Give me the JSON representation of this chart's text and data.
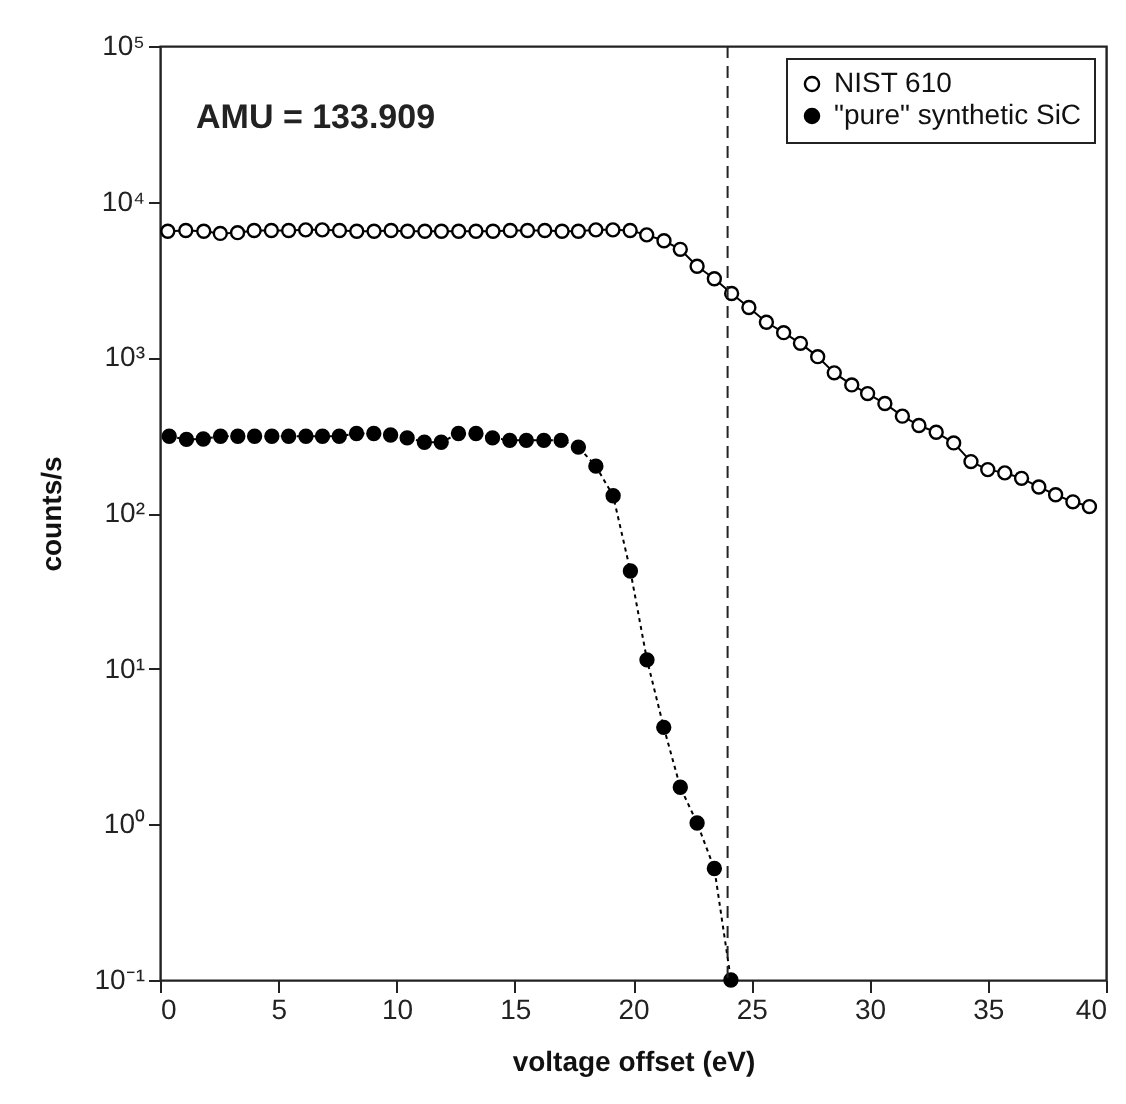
{
  "chart_data": {
    "type": "line",
    "xlabel": "voltage offset (eV)",
    "ylabel": "counts/s",
    "annotations": [
      "AMU = 133.909"
    ],
    "log": "y",
    "grid": false,
    "legend": "top right",
    "marker": "circle",
    "xlim": [
      0,
      40
    ],
    "xticks": [
      0,
      5,
      10,
      15,
      20,
      25,
      30,
      35,
      40
    ],
    "ylim": [
      0.1,
      100000
    ],
    "yticks": [
      {
        "value": 0.1,
        "label": "10⁻¹"
      },
      {
        "value": 1,
        "label": "10⁰"
      },
      {
        "value": 10,
        "label": "10¹"
      },
      {
        "value": 100,
        "label": "10²"
      },
      {
        "value": 1000,
        "label": "10³"
      },
      {
        "value": 10000,
        "label": "10⁴"
      },
      {
        "value": 100000,
        "label": "10⁵"
      }
    ],
    "ref_lines": [
      {
        "axis": "x",
        "value": 24,
        "line_style": "dashed"
      }
    ],
    "series": [
      {
        "name": "NIST 610",
        "color": "#000000",
        "line_style": "solid",
        "x": [
          0.33,
          1.09,
          1.85,
          2.55,
          3.28,
          3.98,
          4.71,
          5.44,
          6.16,
          6.86,
          7.59,
          8.32,
          9.05,
          9.77,
          10.47,
          11.2,
          11.9,
          12.63,
          13.36,
          14.08,
          14.81,
          15.54,
          16.27,
          17.0,
          17.69,
          18.43,
          19.15,
          19.88,
          20.58,
          21.31,
          22.0,
          22.71,
          23.44,
          24.17,
          24.9,
          25.64,
          26.37,
          27.08,
          27.81,
          28.51,
          29.25,
          29.92,
          30.65,
          31.39,
          32.09,
          32.82,
          33.56,
          34.29,
          35.0,
          35.72,
          36.43,
          37.16,
          37.87,
          38.6,
          39.3
        ],
        "values": [
          6460,
          6530,
          6460,
          6250,
          6320,
          6530,
          6530,
          6530,
          6590,
          6590,
          6530,
          6460,
          6460,
          6530,
          6460,
          6460,
          6460,
          6460,
          6460,
          6460,
          6530,
          6530,
          6530,
          6460,
          6460,
          6590,
          6590,
          6530,
          6120,
          5610,
          4940,
          3850,
          3200,
          2570,
          2090,
          1680,
          1440,
          1230,
          1010,
          795,
          665,
          585,
          505,
          419,
          365,
          330,
          282,
          214,
          190,
          181,
          167,
          147,
          131,
          118,
          110
        ]
      },
      {
        "name": "\"pure\" synthetic SiC",
        "color": "#000000",
        "line_style": "dotted",
        "x": [
          0.39,
          1.12,
          1.83,
          2.56,
          3.29,
          4.0,
          4.73,
          5.44,
          6.17,
          6.87,
          7.58,
          8.31,
          9.04,
          9.75,
          10.45,
          11.18,
          11.89,
          12.62,
          13.36,
          14.06,
          14.79,
          15.49,
          16.23,
          16.96,
          17.69,
          18.43,
          19.16,
          19.89,
          20.59,
          21.3,
          22.0,
          22.71,
          23.44,
          24.14
        ],
        "values": [
          311,
          297,
          299,
          311,
          311,
          311,
          311,
          311,
          311,
          311,
          311,
          324,
          324,
          317,
          304,
          285,
          285,
          324,
          324,
          304,
          293,
          293,
          293,
          293,
          265,
          200,
          129,
          42.4,
          11.4,
          4.2,
          1.73,
          1.02,
          0.52,
          0.1
        ]
      }
    ]
  }
}
